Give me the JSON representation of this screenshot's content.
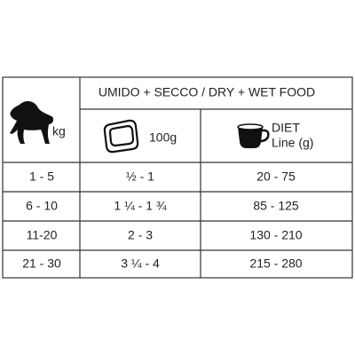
{
  "header": {
    "title": "UMIDO + SECCO / DRY + WET FOOD",
    "weight": "kg",
    "wet": "100g",
    "dry": [
      "DIET",
      "Line (g)"
    ]
  },
  "table": {
    "rows": [
      [
        "1 - 5",
        "½ - 1",
        "20 - 75"
      ],
      [
        "6 - 10",
        "1 ¼ - 1 ¾",
        "85 - 125"
      ],
      [
        "11-20",
        "2 - 3",
        "130 - 210"
      ],
      [
        "21 - 30",
        "3 ¼ - 4",
        "215 - 280"
      ]
    ]
  }
}
